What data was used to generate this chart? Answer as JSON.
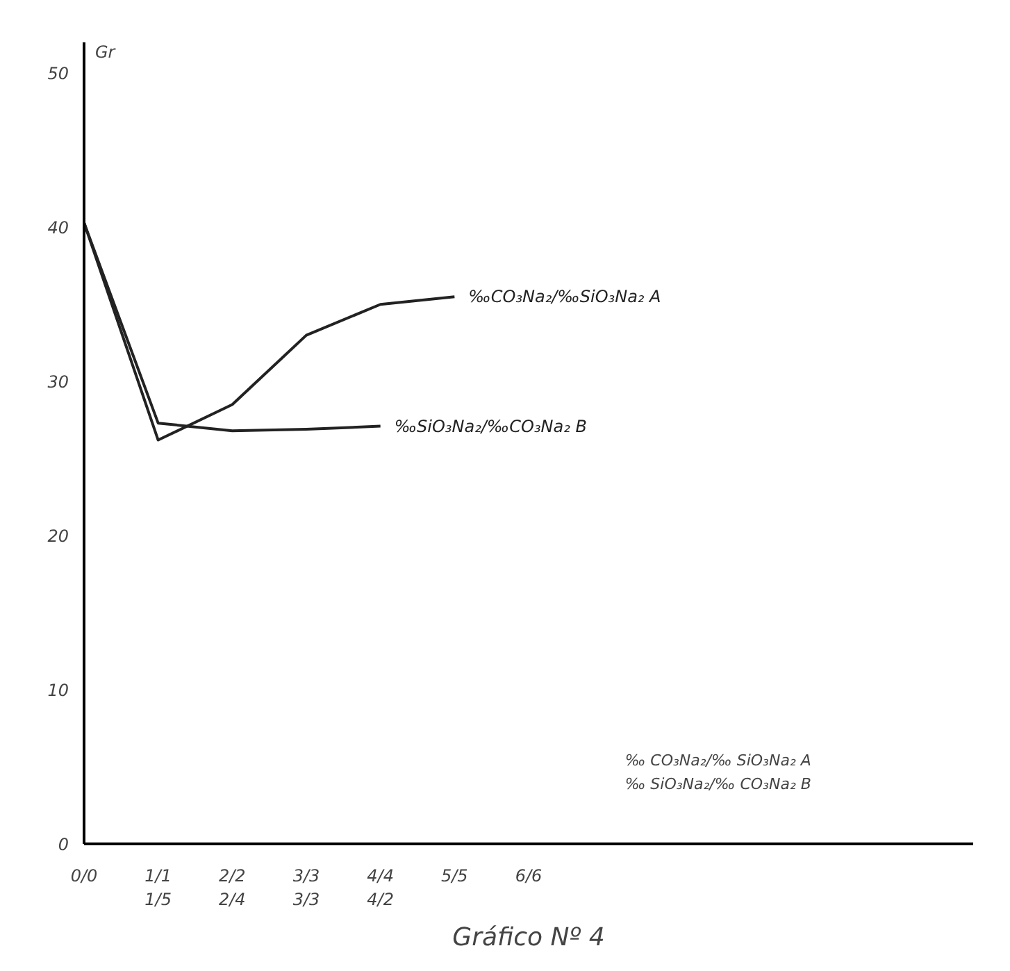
{
  "chart_data": {
    "type": "line",
    "title": "Gráfico Nº 4",
    "ylabel": "Gr",
    "annotations": [
      "‰ CO₃Na₂/‰ SiO₃Na₂ A",
      "‰ SiO₃Na₂/‰ CO₃Na₂ B"
    ],
    "categories": [
      "0/0",
      "1/1\n1/5",
      "2/2\n2/4",
      "3/3\n3/3",
      "4/4\n4/2",
      "5/5",
      "6/6",
      null,
      null,
      null,
      null,
      null,
      null
    ],
    "ylim": [
      0,
      52
    ],
    "yticks": [
      0,
      10,
      20,
      30,
      40,
      50
    ],
    "grid": false,
    "marker": "none",
    "line_style": "solid",
    "series": [
      {
        "name": "‰CO₃Na₂/‰SiO₃Na₂ A",
        "color": "#222222",
        "values": [
          40.3,
          26.2,
          28.5,
          33.0,
          35.0,
          35.5,
          null,
          null,
          null,
          null,
          null,
          null,
          null
        ]
      },
      {
        "name": "‰SiO₃Na₂/‰CO₃Na₂ B",
        "color": "#222222",
        "values": [
          40.3,
          27.3,
          26.8,
          26.9,
          27.1,
          null,
          null,
          null,
          null,
          null,
          null,
          null,
          null
        ]
      }
    ]
  }
}
